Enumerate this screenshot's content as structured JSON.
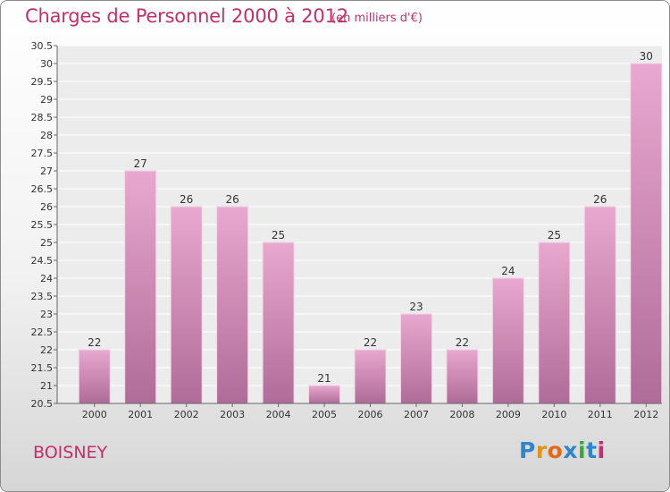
{
  "header": {
    "title": "Charges de Personnel 2000 à 2012",
    "subtitle": "(en milliers d'€)"
  },
  "footer": {
    "commune": "BOISNEY",
    "brand": "Proxiti"
  },
  "colors": {
    "title": "#c0306c",
    "bar_top": "#e8a8cf",
    "bar_bottom": "#b06c98",
    "bar_edge": "#f4d4e8"
  },
  "chart_data": {
    "type": "bar",
    "categories": [
      "2000",
      "2001",
      "2002",
      "2003",
      "2004",
      "2005",
      "2006",
      "2007",
      "2008",
      "2009",
      "2010",
      "2011",
      "2012"
    ],
    "values": [
      22,
      27,
      26,
      26,
      25,
      21,
      22,
      23,
      22,
      24,
      25,
      26,
      30
    ],
    "ylim": [
      20.5,
      30.5
    ],
    "yticks": [
      "20.5",
      "21",
      "21.5",
      "22",
      "22.5",
      "23",
      "23.5",
      "24",
      "24.5",
      "25",
      "25.5",
      "26",
      "26.5",
      "27",
      "27.5",
      "28",
      "28.5",
      "29",
      "29.5",
      "30",
      "30.5"
    ],
    "grid": true,
    "title": "Charges de Personnel 2000 à 2012",
    "xlabel": "",
    "ylabel": ""
  }
}
